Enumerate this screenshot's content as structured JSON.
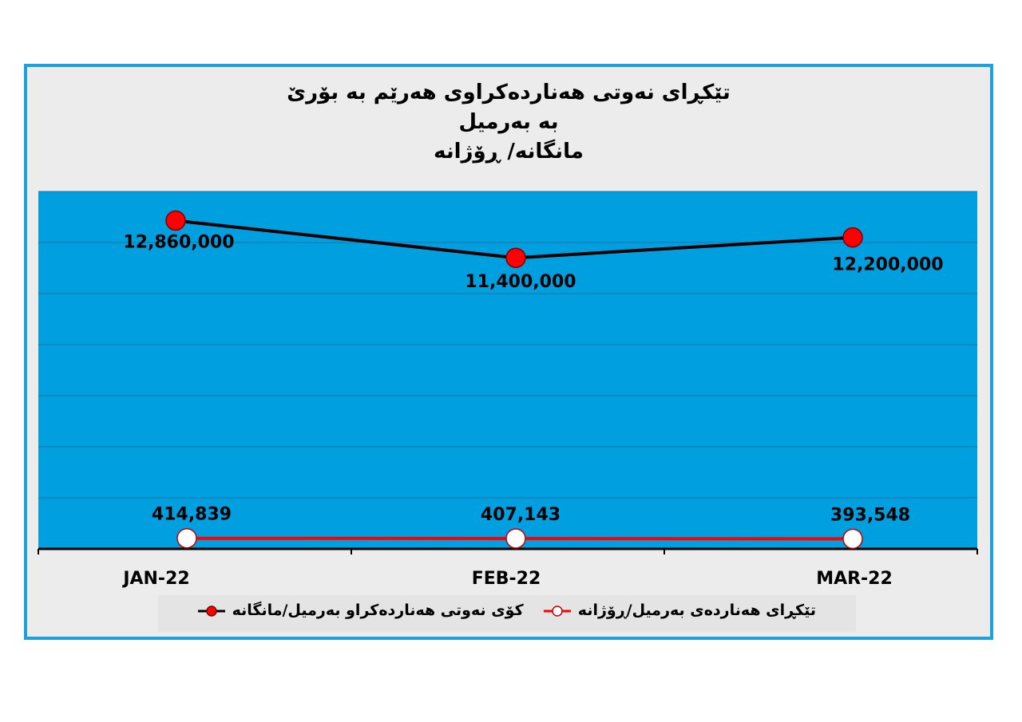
{
  "chart_data": {
    "type": "line",
    "title_lines": [
      "تێکڕای نەوتی هەناردەکراوی هەرێم بە بۆرێ",
      "بە بەرمیل",
      "مانگانە/ ڕۆژانە"
    ],
    "categories": [
      "JAN-22",
      "FEB-22",
      "MAR-22"
    ],
    "series": [
      {
        "name": "کۆی نەوتی هەناردەکراو بەرمیل/مانگانە",
        "values": [
          12860000,
          11400000,
          12200000
        ],
        "labels": [
          "12,860,000",
          "11,400,000",
          "12,200,000"
        ],
        "line_color": "#000000",
        "marker_fill": "#ff0000",
        "marker_stroke": "#7a0000"
      },
      {
        "name": "تێکڕای هەناردەی بەرمیل/ڕۆژانە",
        "values": [
          414839,
          407143,
          393548
        ],
        "labels": [
          "414,839",
          "407,143",
          "393,548"
        ],
        "line_color": "#ff0000",
        "marker_fill": "#ffffff",
        "marker_stroke": "#c00000"
      }
    ],
    "ylim": [
      0,
      14000000
    ],
    "grid": true,
    "legend_position": "bottom",
    "colors": {
      "plot_background": "#00a0e0",
      "chart_background": "#ececec",
      "frame_border": "#1ea0d8",
      "gridline": "#2a6fa0"
    }
  }
}
